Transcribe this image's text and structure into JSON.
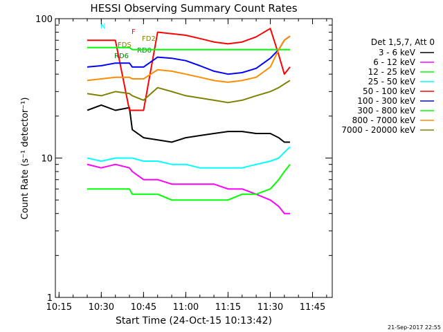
{
  "chart_data": {
    "type": "line",
    "title": "HESSI Observing Summary Count Rates",
    "xlabel": "Start Time (24-Oct-15 10:13:42)",
    "ylabel": "Count Rate (s⁻¹ detector⁻¹)",
    "x_scale": "time",
    "y_scale": "log",
    "xlim": [
      "10:13:42",
      "11:52:00"
    ],
    "ylim": [
      1,
      100
    ],
    "x_ticks": [
      "10:15",
      "10:30",
      "10:45",
      "11:00",
      "11:15",
      "11:30",
      "11:45"
    ],
    "y_ticks": [
      "1",
      "10",
      "100"
    ],
    "legend": {
      "placement": "right",
      "header": "Det 1,5,7, Att 0",
      "entries": [
        "3 - 6 keV",
        "6 - 12 keV",
        "12 - 25 keV",
        "25 - 50 keV",
        "50 - 100 keV",
        "100 - 300 keV",
        "300 - 800 keV",
        "800 - 7000 keV",
        "7000 - 20000 keV"
      ]
    },
    "x": [
      "10:25",
      "10:30",
      "10:35",
      "10:40",
      "10:41",
      "10:45",
      "10:50",
      "10:55",
      "11:00",
      "11:05",
      "11:10",
      "11:15",
      "11:20",
      "11:25",
      "11:30",
      "11:33",
      "11:35",
      "11:37"
    ],
    "series": [
      {
        "name": "3 - 6 keV",
        "color": "#000000",
        "values": [
          22,
          24,
          22,
          23,
          16,
          14,
          13.5,
          13,
          14,
          14.5,
          15,
          15.5,
          15.5,
          15,
          15,
          14,
          13,
          13
        ]
      },
      {
        "name": "6 - 12 keV",
        "color": "#ff00ff",
        "values": [
          9,
          8.5,
          9,
          8.5,
          8,
          7,
          7,
          6.5,
          6.5,
          6.5,
          6.5,
          6,
          6,
          5.5,
          5,
          4.5,
          4,
          4
        ]
      },
      {
        "name": "12 - 25 keV",
        "color": "#00ff00",
        "values": [
          6,
          6,
          6,
          6,
          5.5,
          5.5,
          5.5,
          5,
          5,
          5,
          5,
          5,
          5.5,
          5.5,
          6,
          7,
          8,
          9
        ]
      },
      {
        "name": "25 - 50 keV",
        "color": "#00ffff",
        "values": [
          10,
          9.5,
          10,
          10,
          10,
          9.5,
          9.5,
          9,
          9,
          8.5,
          8.5,
          8.5,
          8.5,
          9,
          9.5,
          10,
          11,
          12
        ]
      },
      {
        "name": "50 - 100 keV",
        "color": "#ff0000",
        "values": [
          70,
          70,
          70,
          22,
          22,
          22,
          80,
          78,
          76,
          72,
          68,
          66,
          68,
          74,
          85,
          55,
          40,
          45
        ]
      },
      {
        "name": "100 - 300 keV",
        "color": "#0000ff",
        "values": [
          45,
          46,
          48,
          48,
          45,
          45,
          53,
          52,
          50,
          46,
          42,
          40,
          41,
          44,
          52,
          60,
          70,
          75
        ]
      },
      {
        "name": "300 - 800 keV",
        "color": "#00ff00",
        "values": [
          62,
          62,
          62,
          62,
          60,
          60,
          60,
          60,
          60,
          60,
          60,
          60,
          60,
          60,
          60,
          60,
          60,
          60
        ]
      },
      {
        "name": "800 - 7000 keV",
        "color": "#ff8c00",
        "values": [
          36,
          37,
          38,
          38,
          37,
          37,
          43,
          42,
          40,
          38,
          36,
          35,
          36,
          38,
          45,
          60,
          70,
          75
        ]
      },
      {
        "name": "7000 - 20000 keV",
        "color": "#808000",
        "values": [
          29,
          28,
          30,
          29,
          28,
          26,
          32,
          30,
          28,
          27,
          26,
          25,
          26,
          28,
          30,
          32,
          34,
          36
        ]
      }
    ],
    "flags": [
      {
        "label": "N",
        "color": "#00ffff"
      },
      {
        "label": "F",
        "color": "#ff0000"
      },
      {
        "label": "FD2",
        "color": "#808000"
      },
      {
        "label": "FDS",
        "color": "#808000"
      },
      {
        "label": "RD6",
        "color": "#008000"
      },
      {
        "label": "RD0",
        "color": "#008000"
      }
    ],
    "timestamp": "21-Sep-2017 22:55"
  }
}
